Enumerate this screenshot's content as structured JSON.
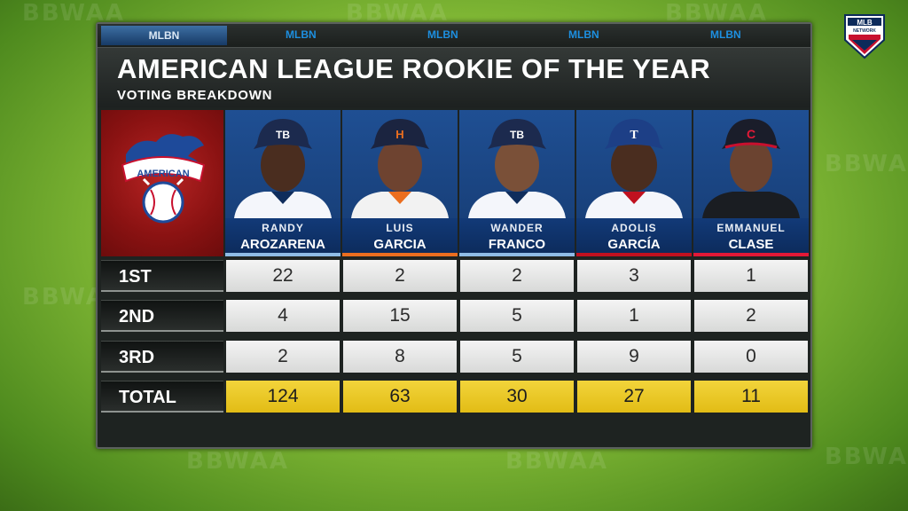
{
  "network_logo": "MLB NETWORK",
  "watermark": "BBWAA",
  "brandbar": {
    "items": [
      "MLBN",
      "MLBN",
      "MLBN",
      "MLBN",
      "MLBN"
    ]
  },
  "title": "AMERICAN LEAGUE ROOKIE OF THE YEAR",
  "subtitle": "VOTING BREAKDOWN",
  "league_logo": "AMERICAN",
  "colors": {
    "accent_yellow": "#e8c21f",
    "league_red": "#9a1818",
    "name_blue": "#0f326a"
  },
  "players": [
    {
      "first": "RANDY",
      "last": "AROZARENA",
      "cap": "TB",
      "stripe": "#8fbce6"
    },
    {
      "first": "LUIS",
      "last": "GARCIA",
      "cap": "H",
      "stripe": "#eb6e1f"
    },
    {
      "first": "WANDER",
      "last": "FRANCO",
      "cap": "TB",
      "stripe": "#8fbce6"
    },
    {
      "first": "ADOLIS",
      "last": "GARCÍA",
      "cap": "T",
      "stripe": "#c0111f"
    },
    {
      "first": "EMMANUEL",
      "last": "CLASE",
      "cap": "C",
      "stripe": "#e31937"
    }
  ],
  "rows": [
    {
      "label": "1ST",
      "values": [
        "22",
        "2",
        "2",
        "3",
        "1"
      ]
    },
    {
      "label": "2ND",
      "values": [
        "4",
        "15",
        "5",
        "1",
        "2"
      ]
    },
    {
      "label": "3RD",
      "values": [
        "2",
        "8",
        "5",
        "9",
        "0"
      ]
    },
    {
      "label": "TOTAL",
      "values": [
        "124",
        "63",
        "30",
        "27",
        "11"
      ]
    }
  ]
}
